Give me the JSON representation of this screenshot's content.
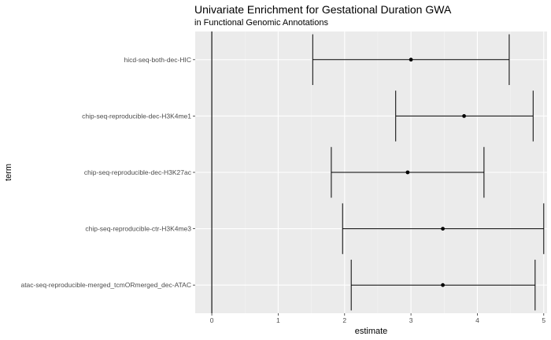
{
  "chart_data": {
    "type": "scatter",
    "title": "Univariate Enrichment for Gestational Duration GWA",
    "subtitle": "in Functional Genomic Annotations",
    "xlabel": "estimate",
    "ylabel": "term",
    "xlim": [
      -0.25,
      5.05
    ],
    "x_ticks": [
      0,
      1,
      2,
      3,
      4,
      5
    ],
    "grid": true,
    "vline_at": 0,
    "points": [
      {
        "term": "hicd-seq-both-dec-HIC",
        "estimate": 3.0,
        "low": 1.52,
        "high": 4.48
      },
      {
        "term": "chip-seq-reproducible-dec-H3K4me1",
        "estimate": 3.8,
        "low": 2.77,
        "high": 4.84
      },
      {
        "term": "chip-seq-reproducible-dec-H3K27ac",
        "estimate": 2.95,
        "low": 1.8,
        "high": 4.1
      },
      {
        "term": "chip-seq-reproducible-ctr-H3K4me3",
        "estimate": 3.48,
        "low": 1.97,
        "high": 5.0
      },
      {
        "term": "atac-seq-reproducible-merged_tcmORmerged_dec-ATAC",
        "estimate": 3.48,
        "low": 2.1,
        "high": 4.87
      }
    ],
    "colors": {
      "panel": "#ebebeb",
      "grid_major": "#ffffff",
      "grid_minor": "#f5f5f5",
      "mark": "#000000",
      "tick_text": "#4d4d4d",
      "tick": "#333333"
    }
  }
}
